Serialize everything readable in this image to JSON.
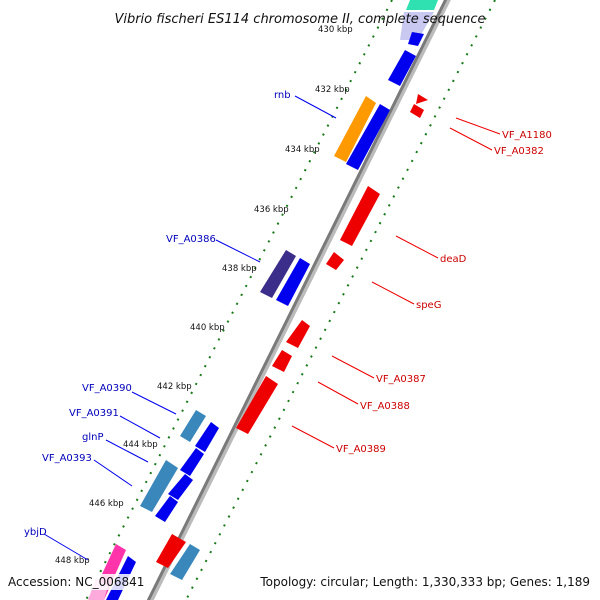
{
  "title": "Vibrio fischeri ES114 chromosome II, complete sequence",
  "footer": {
    "accession": "Accession: NC_006841",
    "topology": "Topology: circular; Length: 1,330,333 bp; Genes: 1,189"
  },
  "colors": {
    "forward_cds": "#0000ee",
    "reverse_cds": "#ee0000",
    "forward_label": "#0000bb",
    "reverse_label": "#cc0000",
    "backbone": "#888888",
    "tick": "#1a7a1a"
  },
  "kbp_ticks": [
    "430 kbp",
    "432 kbp",
    "434 kbp",
    "436 kbp",
    "438 kbp",
    "440 kbp",
    "442 kbp",
    "444 kbp",
    "446 kbp",
    "448 kbp"
  ],
  "forward_labels": [
    "rnb",
    "VF_A0386",
    "VF_A0390",
    "VF_A0391",
    "glnP",
    "VF_A0393",
    "ybjD"
  ],
  "reverse_labels": [
    "VF_A1180",
    "VF_A0382",
    "deaD",
    "speG",
    "VF_A0387",
    "VF_A0388",
    "VF_A0389"
  ]
}
